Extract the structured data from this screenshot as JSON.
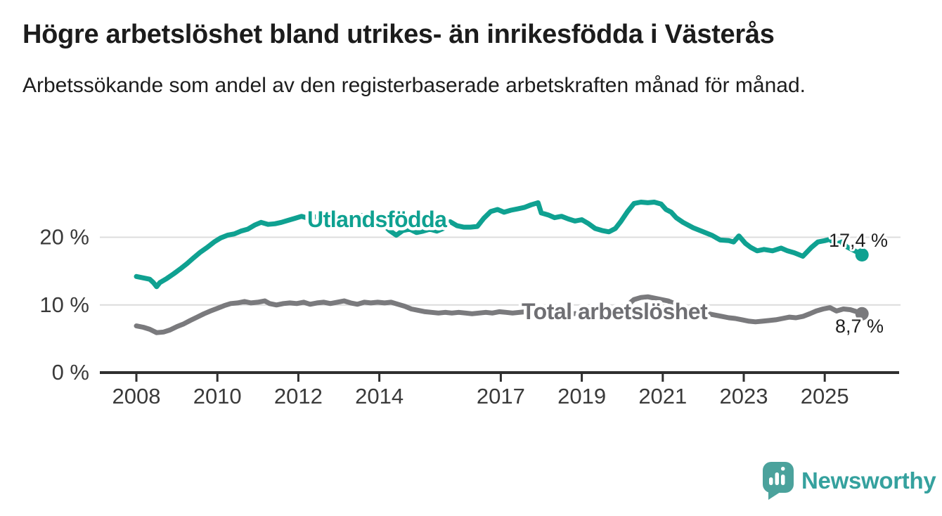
{
  "header": {
    "title": "Högre arbetslöshet bland utrikes- än inrikesfödda i Västerås",
    "subtitle": "Arbetssökande som andel av den registerbaserade arbetskraften månad för månad."
  },
  "footer": {
    "brand": "Newsworthy",
    "brand_bubble_color": "#4ba29c",
    "brand_text_color": "#35a19e"
  },
  "chart_data": {
    "type": "line",
    "title": "Högre arbetslöshet bland utrikes- än inrikesfödda i Västerås",
    "subtitle": "Arbetssökande som andel av den registerbaserade arbetskraften månad för månad.",
    "unit": "%",
    "grid": true,
    "xlim": [
      2007.6,
      2026.3
    ],
    "ylim": [
      0,
      26
    ],
    "x_ticks": [
      2008,
      2010,
      2012,
      2014,
      2017,
      2019,
      2021,
      2023,
      2025
    ],
    "y_ticks": [
      {
        "v": 0,
        "label": "0 %"
      },
      {
        "v": 10,
        "label": "10 %"
      },
      {
        "v": 20,
        "label": "20 %"
      }
    ],
    "series": [
      {
        "name": "Utlandsfödda",
        "color": "#0fa191",
        "end_label": "17,4 %",
        "end_value": 17.4,
        "points": [
          [
            2008.0,
            14.2
          ],
          [
            2008.17,
            14.0
          ],
          [
            2008.33,
            13.8
          ],
          [
            2008.42,
            13.3
          ],
          [
            2008.5,
            12.7
          ],
          [
            2008.58,
            13.3
          ],
          [
            2008.75,
            13.9
          ],
          [
            2008.92,
            14.6
          ],
          [
            2009.08,
            15.3
          ],
          [
            2009.25,
            16.1
          ],
          [
            2009.42,
            17.0
          ],
          [
            2009.58,
            17.8
          ],
          [
            2009.75,
            18.5
          ],
          [
            2009.92,
            19.3
          ],
          [
            2010.08,
            19.9
          ],
          [
            2010.25,
            20.3
          ],
          [
            2010.42,
            20.5
          ],
          [
            2010.58,
            20.9
          ],
          [
            2010.75,
            21.2
          ],
          [
            2010.92,
            21.8
          ],
          [
            2011.08,
            22.2
          ],
          [
            2011.25,
            21.9
          ],
          [
            2011.42,
            22.0
          ],
          [
            2011.58,
            22.2
          ],
          [
            2011.75,
            22.5
          ],
          [
            2011.92,
            22.8
          ],
          [
            2012.08,
            23.1
          ],
          [
            2012.25,
            22.8
          ],
          [
            2012.42,
            23.0
          ],
          [
            2012.58,
            23.2
          ],
          [
            2012.75,
            22.9
          ],
          [
            2012.92,
            23.1
          ],
          [
            2013.08,
            23.3
          ],
          [
            2013.25,
            23.1
          ],
          [
            2013.42,
            23.3
          ],
          [
            2013.58,
            23.2
          ],
          [
            2013.75,
            23.0
          ],
          [
            2013.92,
            22.7
          ],
          [
            2014.08,
            22.0
          ],
          [
            2014.25,
            21.0
          ],
          [
            2014.42,
            20.3
          ],
          [
            2014.58,
            21.0
          ],
          [
            2014.75,
            21.2
          ],
          [
            2014.92,
            20.7
          ],
          [
            2015.08,
            20.9
          ],
          [
            2015.25,
            21.2
          ],
          [
            2015.42,
            20.9
          ],
          [
            2015.58,
            21.3
          ],
          [
            2015.75,
            22.3
          ],
          [
            2015.92,
            21.7
          ],
          [
            2016.08,
            21.5
          ],
          [
            2016.25,
            21.5
          ],
          [
            2016.42,
            21.6
          ],
          [
            2016.58,
            22.8
          ],
          [
            2016.75,
            23.8
          ],
          [
            2016.92,
            24.1
          ],
          [
            2017.08,
            23.7
          ],
          [
            2017.25,
            24.0
          ],
          [
            2017.42,
            24.2
          ],
          [
            2017.58,
            24.4
          ],
          [
            2017.75,
            24.8
          ],
          [
            2017.92,
            25.1
          ],
          [
            2018.0,
            23.6
          ],
          [
            2018.17,
            23.3
          ],
          [
            2018.33,
            22.9
          ],
          [
            2018.5,
            23.1
          ],
          [
            2018.67,
            22.7
          ],
          [
            2018.83,
            22.4
          ],
          [
            2019.0,
            22.6
          ],
          [
            2019.17,
            22.0
          ],
          [
            2019.33,
            21.3
          ],
          [
            2019.5,
            21.0
          ],
          [
            2019.67,
            20.8
          ],
          [
            2019.83,
            21.3
          ],
          [
            2019.96,
            22.3
          ],
          [
            2020.13,
            23.8
          ],
          [
            2020.29,
            25.0
          ],
          [
            2020.46,
            25.2
          ],
          [
            2020.63,
            25.1
          ],
          [
            2020.79,
            25.2
          ],
          [
            2020.96,
            24.9
          ],
          [
            2021.08,
            24.1
          ],
          [
            2021.21,
            23.7
          ],
          [
            2021.33,
            22.9
          ],
          [
            2021.5,
            22.2
          ],
          [
            2021.75,
            21.4
          ],
          [
            2022.0,
            20.8
          ],
          [
            2022.21,
            20.3
          ],
          [
            2022.42,
            19.6
          ],
          [
            2022.63,
            19.5
          ],
          [
            2022.75,
            19.3
          ],
          [
            2022.88,
            20.2
          ],
          [
            2023.04,
            19.1
          ],
          [
            2023.17,
            18.5
          ],
          [
            2023.33,
            18.0
          ],
          [
            2023.5,
            18.2
          ],
          [
            2023.71,
            18.0
          ],
          [
            2023.92,
            18.4
          ],
          [
            2024.08,
            18.0
          ],
          [
            2024.25,
            17.7
          ],
          [
            2024.46,
            17.2
          ],
          [
            2024.67,
            18.5
          ],
          [
            2024.83,
            19.3
          ],
          [
            2025.0,
            19.5
          ],
          [
            2025.13,
            19.7
          ],
          [
            2025.25,
            18.9
          ],
          [
            2025.42,
            19.3
          ],
          [
            2025.54,
            18.6
          ],
          [
            2025.71,
            18.1
          ],
          [
            2025.92,
            17.4
          ]
        ]
      },
      {
        "name": "Total arbetslöshet",
        "color": "#7a7a7d",
        "label_color": "#6f6f73",
        "end_label": "8,7 %",
        "end_value": 8.7,
        "points": [
          [
            2008.0,
            6.9
          ],
          [
            2008.17,
            6.7
          ],
          [
            2008.33,
            6.4
          ],
          [
            2008.5,
            5.9
          ],
          [
            2008.67,
            6.0
          ],
          [
            2008.83,
            6.3
          ],
          [
            2009.0,
            6.8
          ],
          [
            2009.17,
            7.2
          ],
          [
            2009.33,
            7.7
          ],
          [
            2009.5,
            8.2
          ],
          [
            2009.67,
            8.7
          ],
          [
            2009.83,
            9.1
          ],
          [
            2010.0,
            9.5
          ],
          [
            2010.17,
            9.9
          ],
          [
            2010.33,
            10.2
          ],
          [
            2010.5,
            10.3
          ],
          [
            2010.67,
            10.5
          ],
          [
            2010.83,
            10.3
          ],
          [
            2011.0,
            10.4
          ],
          [
            2011.17,
            10.6
          ],
          [
            2011.29,
            10.2
          ],
          [
            2011.46,
            10.0
          ],
          [
            2011.63,
            10.2
          ],
          [
            2011.79,
            10.3
          ],
          [
            2011.96,
            10.2
          ],
          [
            2012.13,
            10.4
          ],
          [
            2012.29,
            10.1
          ],
          [
            2012.46,
            10.3
          ],
          [
            2012.63,
            10.4
          ],
          [
            2012.79,
            10.2
          ],
          [
            2012.96,
            10.4
          ],
          [
            2013.13,
            10.6
          ],
          [
            2013.29,
            10.3
          ],
          [
            2013.46,
            10.1
          ],
          [
            2013.63,
            10.4
          ],
          [
            2013.79,
            10.3
          ],
          [
            2013.96,
            10.4
          ],
          [
            2014.13,
            10.3
          ],
          [
            2014.29,
            10.4
          ],
          [
            2014.46,
            10.1
          ],
          [
            2014.63,
            9.8
          ],
          [
            2014.79,
            9.4
          ],
          [
            2014.96,
            9.2
          ],
          [
            2015.13,
            9.0
          ],
          [
            2015.29,
            8.9
          ],
          [
            2015.46,
            8.8
          ],
          [
            2015.63,
            8.9
          ],
          [
            2015.79,
            8.8
          ],
          [
            2015.96,
            8.9
          ],
          [
            2016.13,
            8.8
          ],
          [
            2016.29,
            8.7
          ],
          [
            2016.46,
            8.8
          ],
          [
            2016.63,
            8.9
          ],
          [
            2016.79,
            8.8
          ],
          [
            2016.96,
            9.0
          ],
          [
            2017.13,
            8.9
          ],
          [
            2017.29,
            8.8
          ],
          [
            2017.46,
            8.9
          ],
          [
            2017.63,
            9.0
          ],
          [
            2017.79,
            8.9
          ],
          [
            2017.96,
            8.8
          ],
          [
            2018.13,
            8.9
          ],
          [
            2018.29,
            8.8
          ],
          [
            2018.46,
            8.7
          ],
          [
            2018.63,
            8.8
          ],
          [
            2018.79,
            8.7
          ],
          [
            2018.96,
            8.8
          ],
          [
            2019.13,
            8.7
          ],
          [
            2019.29,
            8.6
          ],
          [
            2019.46,
            8.7
          ],
          [
            2019.63,
            8.8
          ],
          [
            2019.79,
            8.9
          ],
          [
            2019.96,
            9.3
          ],
          [
            2020.13,
            10.0
          ],
          [
            2020.29,
            10.8
          ],
          [
            2020.46,
            11.1
          ],
          [
            2020.63,
            11.2
          ],
          [
            2020.79,
            11.0
          ],
          [
            2020.96,
            10.8
          ],
          [
            2021.13,
            10.6
          ],
          [
            2021.29,
            10.2
          ],
          [
            2021.46,
            9.8
          ],
          [
            2021.63,
            9.4
          ],
          [
            2021.79,
            9.1
          ],
          [
            2021.96,
            8.9
          ],
          [
            2022.13,
            8.7
          ],
          [
            2022.29,
            8.5
          ],
          [
            2022.46,
            8.3
          ],
          [
            2022.63,
            8.1
          ],
          [
            2022.79,
            8.0
          ],
          [
            2022.96,
            7.8
          ],
          [
            2023.13,
            7.6
          ],
          [
            2023.29,
            7.5
          ],
          [
            2023.46,
            7.6
          ],
          [
            2023.63,
            7.7
          ],
          [
            2023.79,
            7.8
          ],
          [
            2023.96,
            8.0
          ],
          [
            2024.13,
            8.2
          ],
          [
            2024.29,
            8.1
          ],
          [
            2024.46,
            8.3
          ],
          [
            2024.63,
            8.7
          ],
          [
            2024.79,
            9.1
          ],
          [
            2024.96,
            9.4
          ],
          [
            2025.13,
            9.6
          ],
          [
            2025.29,
            9.1
          ],
          [
            2025.46,
            9.4
          ],
          [
            2025.63,
            9.3
          ],
          [
            2025.79,
            9.0
          ],
          [
            2025.92,
            8.7
          ]
        ]
      }
    ],
    "legend_position": "inline-labels"
  }
}
